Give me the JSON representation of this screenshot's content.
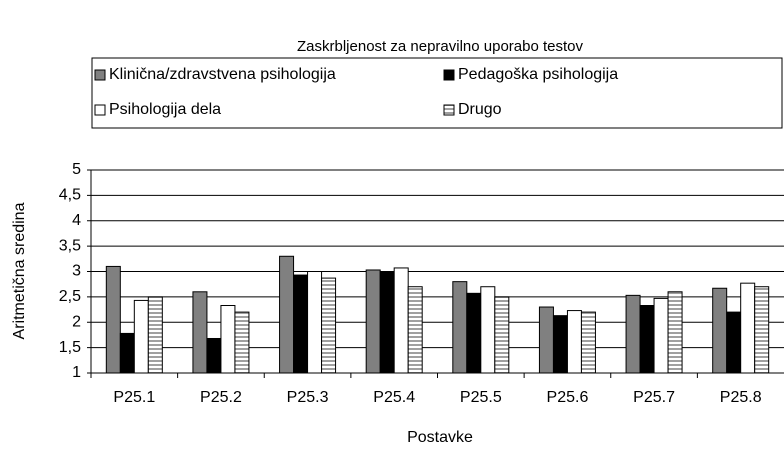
{
  "chart_data": {
    "type": "bar",
    "title": "Zaskrbljenost za nepravilno uporabo testov",
    "x_label": "Postavke",
    "y_label": "Aritmetična sredina",
    "categories": [
      "P25.1",
      "P25.2",
      "P25.3",
      "P25.4",
      "P25.5",
      "P25.6",
      "P25.7",
      "P25.8"
    ],
    "series": [
      {
        "name": "Klinična/zdravstvena psihologija",
        "color": "#808080",
        "values": [
          3.1,
          2.6,
          3.3,
          3.03,
          2.8,
          2.3,
          2.53,
          2.67
        ]
      },
      {
        "name": "Pedagoška psihologija",
        "color": "#000000",
        "values": [
          1.78,
          1.68,
          2.93,
          3.0,
          2.57,
          2.13,
          2.33,
          2.2
        ]
      },
      {
        "name": "Psihologija dela",
        "color": "#ffffff",
        "values": [
          2.43,
          2.33,
          3.0,
          3.07,
          2.7,
          2.23,
          2.47,
          2.77
        ]
      },
      {
        "name": "Drugo",
        "color": "#a0a0a0",
        "values": [
          2.5,
          2.2,
          2.87,
          2.7,
          2.5,
          2.2,
          2.6,
          2.7
        ]
      }
    ],
    "ylim": [
      1,
      5
    ],
    "yticks": [
      1,
      {
        "value": 1.5,
        "label": "1,5"
      },
      2,
      {
        "value": 2.5,
        "label": "2,5"
      },
      3,
      {
        "value": 3.5,
        "label": "3,5"
      },
      4,
      {
        "value": 4.5,
        "label": "4,5"
      },
      5
    ],
    "grid": true
  }
}
